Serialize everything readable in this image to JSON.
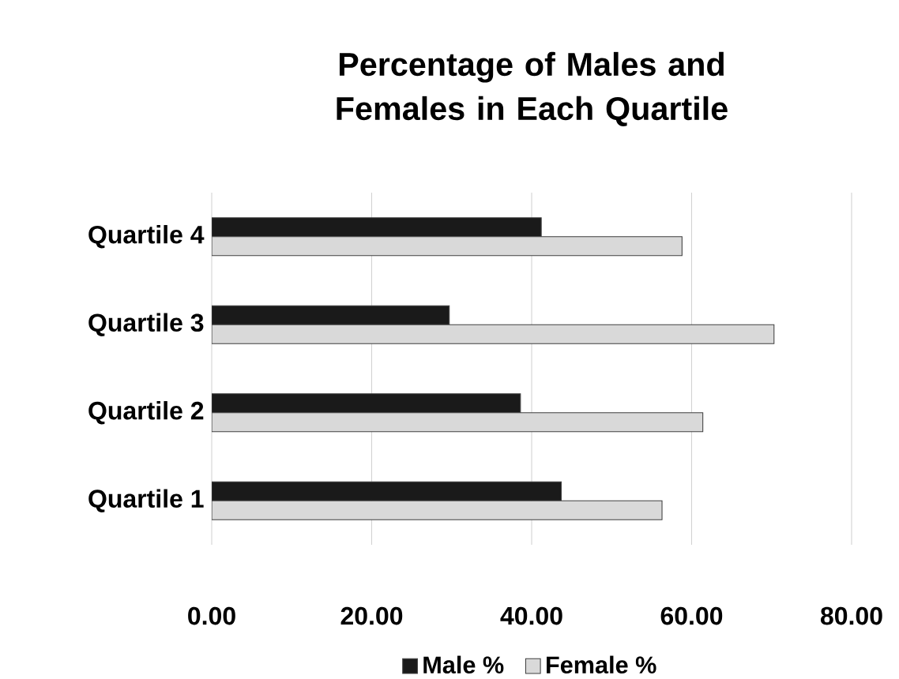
{
  "chart_data": {
    "type": "bar",
    "orientation": "horizontal",
    "title": "Percentage of Males and Females in Each Quartile",
    "categories": [
      "Quartile 4",
      "Quartile 3",
      "Quartile 2",
      "Quartile 1"
    ],
    "series": [
      {
        "name": "Male %",
        "color": "#1a1a1a",
        "values": [
          41.2,
          29.7,
          38.6,
          43.7
        ]
      },
      {
        "name": "Female %",
        "color": "#d9d9d9",
        "values": [
          58.8,
          70.3,
          61.4,
          56.3
        ]
      }
    ],
    "xlim": [
      0,
      80
    ],
    "xticks": [
      {
        "value": 0,
        "label": "0.00"
      },
      {
        "value": 20,
        "label": "20.00"
      },
      {
        "value": 40,
        "label": "40.00"
      },
      {
        "value": 60,
        "label": "60.00"
      },
      {
        "value": 80,
        "label": "80.00"
      }
    ],
    "grid": "x",
    "legend": "bottom"
  }
}
